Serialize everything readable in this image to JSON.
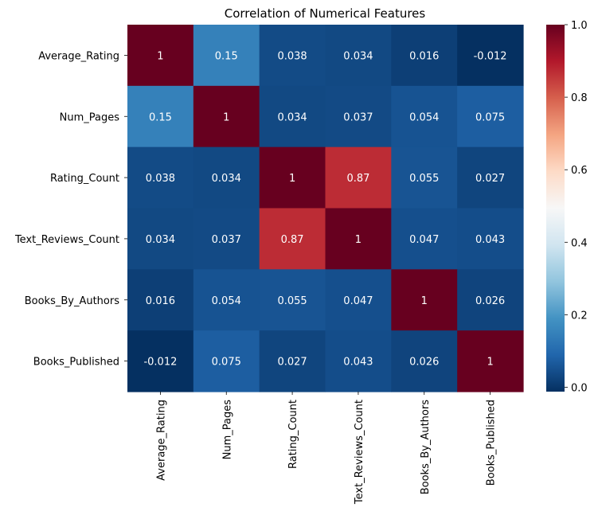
{
  "chart_data": {
    "type": "heatmap",
    "title": "Correlation of Numerical Features",
    "row_labels": [
      "Average_Rating",
      "Num_Pages",
      "Rating_Count",
      "Text_Reviews_Count",
      "Books_By_Authors",
      "Books_Published"
    ],
    "col_labels": [
      "Average_Rating",
      "Num_Pages",
      "Rating_Count",
      "Text_Reviews_Count",
      "Books_By_Authors",
      "Books_Published"
    ],
    "values": [
      [
        1,
        0.15,
        0.038,
        0.034,
        0.016,
        -0.012
      ],
      [
        0.15,
        1,
        0.034,
        0.037,
        0.054,
        0.075
      ],
      [
        0.038,
        0.034,
        1,
        0.87,
        0.055,
        0.027
      ],
      [
        0.034,
        0.037,
        0.87,
        1,
        0.047,
        0.043
      ],
      [
        0.016,
        0.054,
        0.055,
        0.047,
        1,
        0.026
      ],
      [
        -0.012,
        0.075,
        0.027,
        0.043,
        0.026,
        1
      ]
    ],
    "annotations": [
      [
        "1",
        "0.15",
        "0.038",
        "0.034",
        "0.016",
        "-0.012"
      ],
      [
        "0.15",
        "1",
        "0.034",
        "0.037",
        "0.054",
        "0.075"
      ],
      [
        "0.038",
        "0.034",
        "1",
        "0.87",
        "0.055",
        "0.027"
      ],
      [
        "0.034",
        "0.037",
        "0.87",
        "1",
        "0.047",
        "0.043"
      ],
      [
        "0.016",
        "0.054",
        "0.055",
        "0.047",
        "1",
        "0.026"
      ],
      [
        "-0.012",
        "0.075",
        "0.027",
        "0.043",
        "0.026",
        "1"
      ]
    ],
    "colormap": "RdBu_r",
    "vmin": -0.012,
    "vmax": 1,
    "colorbar_ticks": [
      0.0,
      0.2,
      0.4,
      0.6,
      0.8,
      1.0
    ],
    "colorbar_tick_labels": [
      "0.0",
      "0.2",
      "0.4",
      "0.6",
      "0.8",
      "1.0"
    ],
    "xticklabel_rotation": "vertical",
    "grid": false,
    "colorbar": "right"
  }
}
